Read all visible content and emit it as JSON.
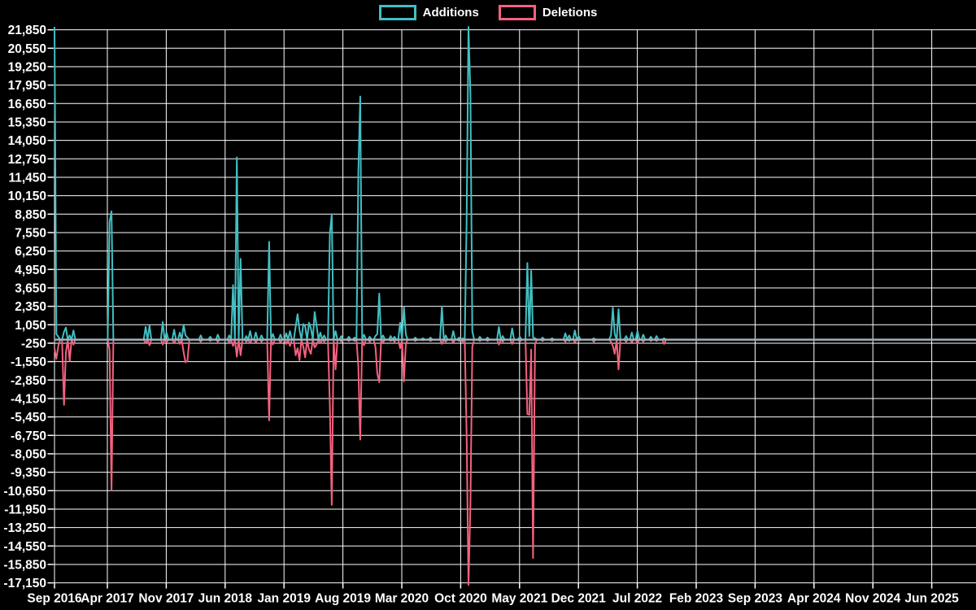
{
  "legend": {
    "additions_label": "Additions",
    "deletions_label": "Deletions"
  },
  "colors": {
    "background": "#000000",
    "grid": "#ffffff",
    "text": "#ffffff",
    "additions": "#41bfc3",
    "deletions": "#f4617e",
    "zero_line": "#9fb4bc"
  },
  "chart_data": {
    "type": "line",
    "title": "",
    "xlabel": "",
    "ylabel": "",
    "legend_position": "top-center",
    "grid": true,
    "x_tick_labels": [
      "Sep 2016",
      "Apr 2017",
      "Nov 2017",
      "Jun 2018",
      "Jan 2019",
      "Aug 2019",
      "Mar 2020",
      "Oct 2020",
      "May 2021",
      "Dec 2021",
      "Jul 2022",
      "Feb 2023",
      "Sep 2023",
      "Apr 2024",
      "Nov 2024",
      "Jun 2025"
    ],
    "y_tick_labels": [
      "21,850",
      "20,550",
      "19,250",
      "17,950",
      "16,650",
      "15,350",
      "14,050",
      "12,750",
      "11,450",
      "10,150",
      "8,850",
      "7,550",
      "6,250",
      "4,950",
      "3,650",
      "2,350",
      "1,050",
      "-250",
      "-1,550",
      "-2,850",
      "-4,150",
      "-5,450",
      "-6,750",
      "-8,050",
      "-9,350",
      "-10,650",
      "-11,950",
      "-13,250",
      "-14,550",
      "-15,850",
      "-17,150"
    ],
    "y_max": 21850,
    "y_min": -17150,
    "y_step": 1300,
    "x_unit": "week",
    "total_weeks": 486,
    "series": [
      {
        "name": "Additions",
        "color": "#41bfc3",
        "sign": "positive"
      },
      {
        "name": "Deletions",
        "color": "#f4617e",
        "sign": "negative"
      }
    ],
    "weekly_spikes": [
      [
        0,
        22050,
        -600
      ],
      [
        1,
        400,
        -1350
      ],
      [
        2,
        200,
        -450
      ],
      [
        5,
        550,
        -4600
      ],
      [
        6,
        850,
        -900
      ],
      [
        8,
        300,
        -1500
      ],
      [
        10,
        650,
        -350
      ],
      [
        29,
        8300,
        -700
      ],
      [
        30,
        9050,
        -10650
      ],
      [
        48,
        900,
        -250
      ],
      [
        50,
        1000,
        -400
      ],
      [
        57,
        1250,
        -350
      ],
      [
        59,
        500,
        -200
      ],
      [
        63,
        700,
        -250
      ],
      [
        66,
        500,
        -300
      ],
      [
        68,
        1050,
        -900
      ],
      [
        69,
        300,
        -1600
      ],
      [
        70,
        150,
        -1500
      ],
      [
        77,
        300,
        -150
      ],
      [
        82,
        200,
        -100
      ],
      [
        86,
        350,
        -150
      ],
      [
        92,
        300,
        -200
      ],
      [
        94,
        3850,
        -450
      ],
      [
        96,
        12850,
        -1200
      ],
      [
        98,
        5700,
        -1100
      ],
      [
        101,
        250,
        -150
      ],
      [
        103,
        600,
        -250
      ],
      [
        106,
        500,
        -200
      ],
      [
        109,
        300,
        -150
      ],
      [
        113,
        6900,
        -5700
      ],
      [
        115,
        400,
        -350
      ],
      [
        119,
        350,
        -200
      ],
      [
        122,
        450,
        -300
      ],
      [
        124,
        600,
        -450
      ],
      [
        127,
        900,
        -1100
      ],
      [
        128,
        1800,
        -600
      ],
      [
        129,
        700,
        -1450
      ],
      [
        131,
        1100,
        -500
      ],
      [
        132,
        950,
        -1250
      ],
      [
        134,
        1200,
        -700
      ],
      [
        135,
        800,
        -1000
      ],
      [
        137,
        1950,
        -550
      ],
      [
        138,
        1000,
        -350
      ],
      [
        140,
        500,
        -250
      ],
      [
        142,
        300,
        -150
      ],
      [
        145,
        7500,
        -4750
      ],
      [
        146,
        8850,
        -11650
      ],
      [
        148,
        600,
        -2100
      ],
      [
        151,
        250,
        -150
      ],
      [
        155,
        200,
        -100
      ],
      [
        158,
        150,
        -100
      ],
      [
        160,
        11800,
        -1900
      ],
      [
        161,
        17150,
        -7050
      ],
      [
        163,
        350,
        -400
      ],
      [
        166,
        200,
        -150
      ],
      [
        169,
        250,
        -500
      ],
      [
        170,
        400,
        -2400
      ],
      [
        171,
        3250,
        -3000
      ],
      [
        173,
        300,
        -200
      ],
      [
        177,
        250,
        -100
      ],
      [
        179,
        200,
        -150
      ],
      [
        182,
        1200,
        -600
      ],
      [
        184,
        2300,
        -2950
      ],
      [
        185,
        350,
        -250
      ],
      [
        190,
        150,
        -100
      ],
      [
        194,
        100,
        -50
      ],
      [
        198,
        150,
        -100
      ],
      [
        204,
        2350,
        -300
      ],
      [
        206,
        300,
        -150
      ],
      [
        210,
        600,
        -200
      ],
      [
        213,
        150,
        -100
      ],
      [
        215,
        100,
        -150
      ],
      [
        217,
        8300,
        -6600
      ],
      [
        218,
        22050,
        -17300
      ],
      [
        219,
        17300,
        -11600
      ],
      [
        220,
        600,
        -500
      ],
      [
        224,
        200,
        -100
      ],
      [
        228,
        150,
        -100
      ],
      [
        234,
        900,
        -350
      ],
      [
        236,
        250,
        -150
      ],
      [
        241,
        800,
        -300
      ],
      [
        245,
        200,
        -150
      ],
      [
        249,
        5400,
        -5250
      ],
      [
        250,
        250,
        -5300
      ],
      [
        251,
        4850,
        -700
      ],
      [
        252,
        150,
        -15400
      ],
      [
        253,
        100,
        -300
      ],
      [
        257,
        150,
        -100
      ],
      [
        262,
        100,
        -100
      ],
      [
        269,
        450,
        -150
      ],
      [
        271,
        300,
        -100
      ],
      [
        274,
        650,
        -200
      ],
      [
        276,
        250,
        -100
      ],
      [
        284,
        100,
        -150
      ],
      [
        293,
        300,
        -150
      ],
      [
        294,
        2250,
        -450
      ],
      [
        295,
        400,
        -1000
      ],
      [
        297,
        2150,
        -2100
      ],
      [
        301,
        250,
        -150
      ],
      [
        304,
        500,
        -200
      ],
      [
        307,
        600,
        -250
      ],
      [
        310,
        350,
        -150
      ],
      [
        314,
        200,
        -100
      ],
      [
        317,
        250,
        -100
      ],
      [
        321,
        100,
        -300
      ]
    ]
  }
}
